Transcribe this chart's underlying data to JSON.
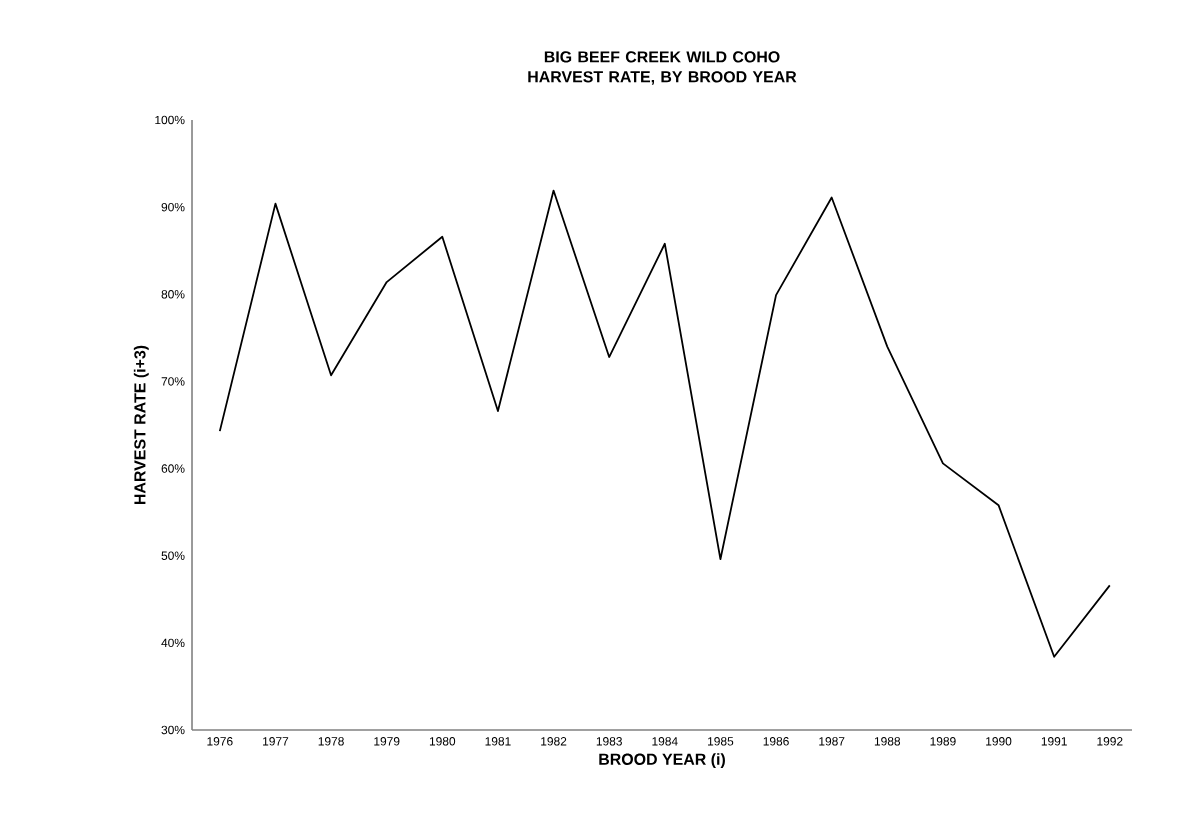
{
  "chart_data": {
    "type": "line",
    "title": "BIG BEEF CREEK WILD COHO\nHARVEST RATE, BY BROOD YEAR",
    "xlabel": "BROOD YEAR (i)",
    "ylabel": "HARVEST RATE (i+3)",
    "categories": [
      "1976",
      "1977",
      "1978",
      "1979",
      "1980",
      "1981",
      "1982",
      "1983",
      "1984",
      "1985",
      "1986",
      "1987",
      "1988",
      "1989",
      "1990",
      "1991",
      "1992"
    ],
    "series": [
      {
        "color": "#000000",
        "values": [
          64.3,
          90.4,
          70.7,
          81.4,
          86.6,
          66.6,
          91.9,
          72.8,
          85.8,
          49.6,
          79.9,
          91.1,
          74.0,
          60.6,
          55.8,
          38.4,
          46.6
        ]
      }
    ],
    "ylim": [
      30,
      100
    ],
    "yticks": [
      {
        "value": 30,
        "label": "30%"
      },
      {
        "value": 40,
        "label": "40%"
      },
      {
        "value": 50,
        "label": "50%"
      },
      {
        "value": 60,
        "label": "60%"
      },
      {
        "value": 70,
        "label": "70%"
      },
      {
        "value": 80,
        "label": "80%"
      },
      {
        "value": 90,
        "label": "90%"
      },
      {
        "value": 100,
        "label": "100%"
      }
    ],
    "grid": false,
    "marker": "none",
    "line_style": "solid"
  }
}
